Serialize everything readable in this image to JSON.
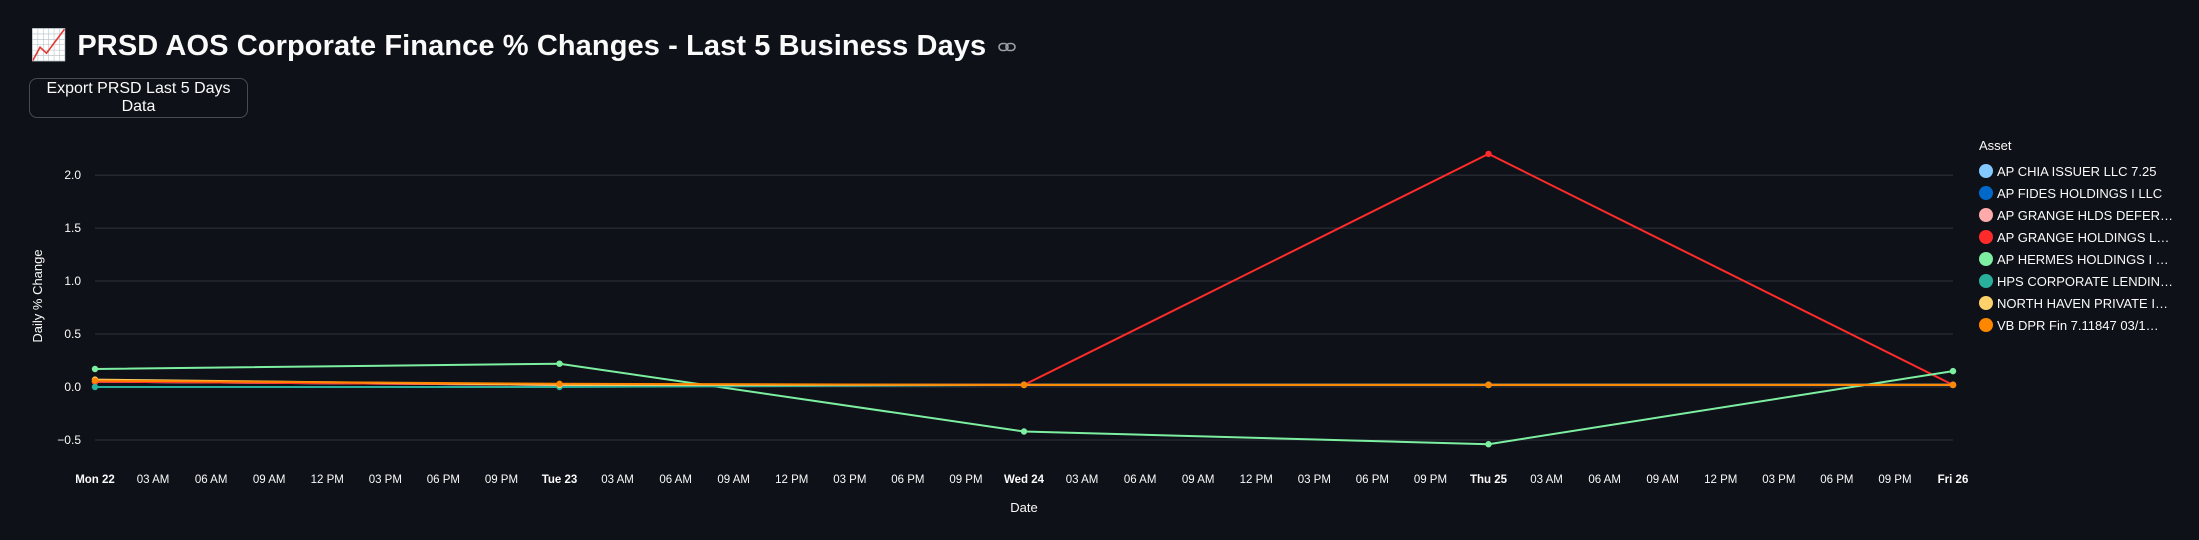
{
  "header": {
    "emoji": "📈",
    "title": "PRSD AOS Corporate Finance % Changes - Last 5 Business Days",
    "link_icon": "link-icon"
  },
  "export_button": {
    "label": "Export PRSD Last 5 Days Data"
  },
  "chart_data": {
    "type": "line",
    "title": "",
    "xlabel": "Date",
    "ylabel": "Daily % Change",
    "ylim": [
      -0.67,
      2.35
    ],
    "y_ticks": [
      -0.5,
      0,
      0.5,
      1,
      1.5,
      2
    ],
    "y_tick_labels": [
      "−0.5",
      "0.0",
      "0.5",
      "1.0",
      "1.5",
      "2.0"
    ],
    "x": [
      "2025-09-22",
      "2025-09-23",
      "2025-09-24",
      "2025-09-25",
      "2025-09-26"
    ],
    "x_ticks": [
      {
        "hour": 0,
        "label": "Mon 22",
        "bold": true
      },
      {
        "hour": 3,
        "label": "03 AM"
      },
      {
        "hour": 6,
        "label": "06 AM"
      },
      {
        "hour": 9,
        "label": "09 AM"
      },
      {
        "hour": 12,
        "label": "12 PM"
      },
      {
        "hour": 15,
        "label": "03 PM"
      },
      {
        "hour": 18,
        "label": "06 PM"
      },
      {
        "hour": 21,
        "label": "09 PM"
      },
      {
        "hour": 24,
        "label": "Tue 23",
        "bold": true
      },
      {
        "hour": 27,
        "label": "03 AM"
      },
      {
        "hour": 30,
        "label": "06 AM"
      },
      {
        "hour": 33,
        "label": "09 AM"
      },
      {
        "hour": 36,
        "label": "12 PM"
      },
      {
        "hour": 39,
        "label": "03 PM"
      },
      {
        "hour": 42,
        "label": "06 PM"
      },
      {
        "hour": 45,
        "label": "09 PM"
      },
      {
        "hour": 48,
        "label": "Wed 24",
        "bold": true
      },
      {
        "hour": 51,
        "label": "03 AM"
      },
      {
        "hour": 54,
        "label": "06 AM"
      },
      {
        "hour": 57,
        "label": "09 AM"
      },
      {
        "hour": 60,
        "label": "12 PM"
      },
      {
        "hour": 63,
        "label": "03 PM"
      },
      {
        "hour": 66,
        "label": "06 PM"
      },
      {
        "hour": 69,
        "label": "09 PM"
      },
      {
        "hour": 72,
        "label": "Thu 25",
        "bold": true
      },
      {
        "hour": 75,
        "label": "03 AM"
      },
      {
        "hour": 78,
        "label": "06 AM"
      },
      {
        "hour": 81,
        "label": "09 AM"
      },
      {
        "hour": 84,
        "label": "12 PM"
      },
      {
        "hour": 87,
        "label": "03 PM"
      },
      {
        "hour": 90,
        "label": "06 PM"
      },
      {
        "hour": 93,
        "label": "09 PM"
      },
      {
        "hour": 96,
        "label": "Fri 26",
        "bold": true
      }
    ],
    "grid": true,
    "legend_title": "Asset",
    "legend_position": "right",
    "series": [
      {
        "name": "AP CHIA ISSUER LLC 7.25",
        "color": "#83c9ff",
        "values": [
          0.05,
          0.02,
          0.02,
          0.02,
          0.02
        ]
      },
      {
        "name": "AP FIDES HOLDINGS I LLC",
        "color": "#0068c9",
        "values": [
          0.05,
          0.02,
          0.02,
          0.02,
          0.02
        ]
      },
      {
        "name": "AP GRANGE HLDS DEFER…",
        "color": "#ffabab",
        "values": [
          0.05,
          0.02,
          0.02,
          0.02,
          0.02
        ]
      },
      {
        "name": "AP GRANGE HOLDINGS L…",
        "color": "#ff2b2b",
        "values": [
          0.05,
          0.02,
          0.02,
          2.2,
          0.02
        ]
      },
      {
        "name": "AP HERMES HOLDINGS I …",
        "color": "#7defa1",
        "values": [
          0.17,
          0.22,
          -0.42,
          -0.54,
          0.15
        ]
      },
      {
        "name": "HPS CORPORATE LENDIN…",
        "color": "#29b09d",
        "values": [
          0.0,
          0.0,
          0.02,
          0.02,
          0.02
        ]
      },
      {
        "name": "NORTH HAVEN PRIVATE I…",
        "color": "#ffd16a",
        "values": [
          0.07,
          0.02,
          0.02,
          0.02,
          0.02
        ]
      },
      {
        "name": "VB DPR Fin 7.11847 03/1…",
        "color": "#ff8700",
        "values": [
          0.06,
          0.03,
          0.02,
          0.02,
          0.02
        ]
      }
    ]
  }
}
